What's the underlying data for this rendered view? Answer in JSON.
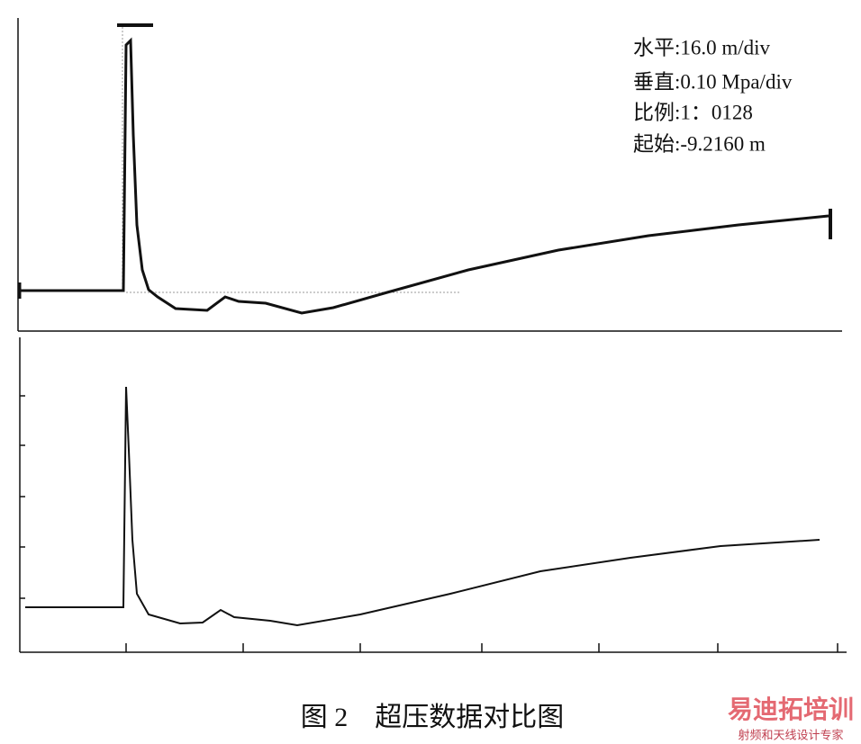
{
  "figure": {
    "annotations": [
      "水平:16.0 m/div",
      "垂直:0.10 Mpa/div",
      "比例:1：0128",
      "起始:-9.2160 m"
    ],
    "caption": "图 2　超压数据对比图"
  },
  "watermark": {
    "title": "易迪拓培训",
    "subtitle": "射频和天线设计专家"
  }
}
